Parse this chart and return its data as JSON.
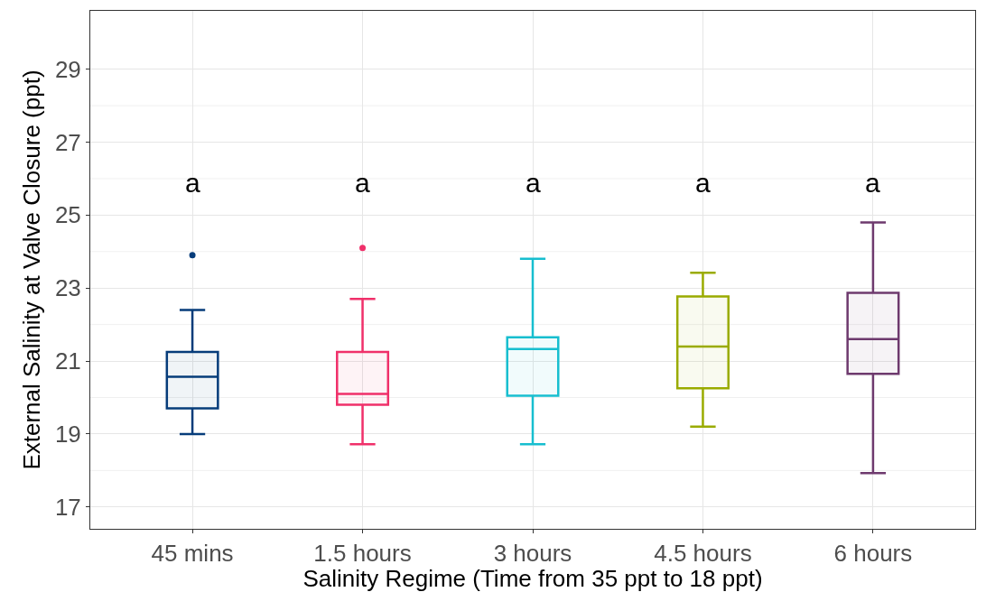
{
  "chart_data": {
    "type": "box",
    "xlabel": "Salinity Regime (Time from 35 ppt to 18 ppt)",
    "ylabel": "External Salinity at Valve Closure (ppt)",
    "categories": [
      "45 mins",
      "1.5 hours",
      "3 hours",
      "4.5 hours",
      "6 hours"
    ],
    "colors": [
      "#063c7a",
      "#f0306a",
      "#17becf",
      "#9aab00",
      "#6e3a6e"
    ],
    "boxes": [
      {
        "low": 19.0,
        "q1": 19.7,
        "median": 20.57,
        "q3": 21.25,
        "high": 22.4,
        "outliers": [
          23.9
        ]
      },
      {
        "low": 18.72,
        "q1": 19.8,
        "median": 20.1,
        "q3": 21.25,
        "high": 22.7,
        "outliers": [
          24.1
        ]
      },
      {
        "low": 18.72,
        "q1": 20.05,
        "median": 21.33,
        "q3": 21.65,
        "high": 23.8
      },
      {
        "low": 19.2,
        "q1": 20.25,
        "median": 21.4,
        "q3": 22.77,
        "high": 23.42
      },
      {
        "low": 17.93,
        "q1": 20.65,
        "median": 21.6,
        "q3": 22.87,
        "high": 24.8
      }
    ],
    "annotations": [
      "a",
      "a",
      "a",
      "a",
      "a"
    ],
    "ylim": [
      16.4,
      30.6
    ],
    "yticks": [
      17,
      19,
      21,
      23,
      25,
      27,
      29
    ],
    "grid": true
  }
}
